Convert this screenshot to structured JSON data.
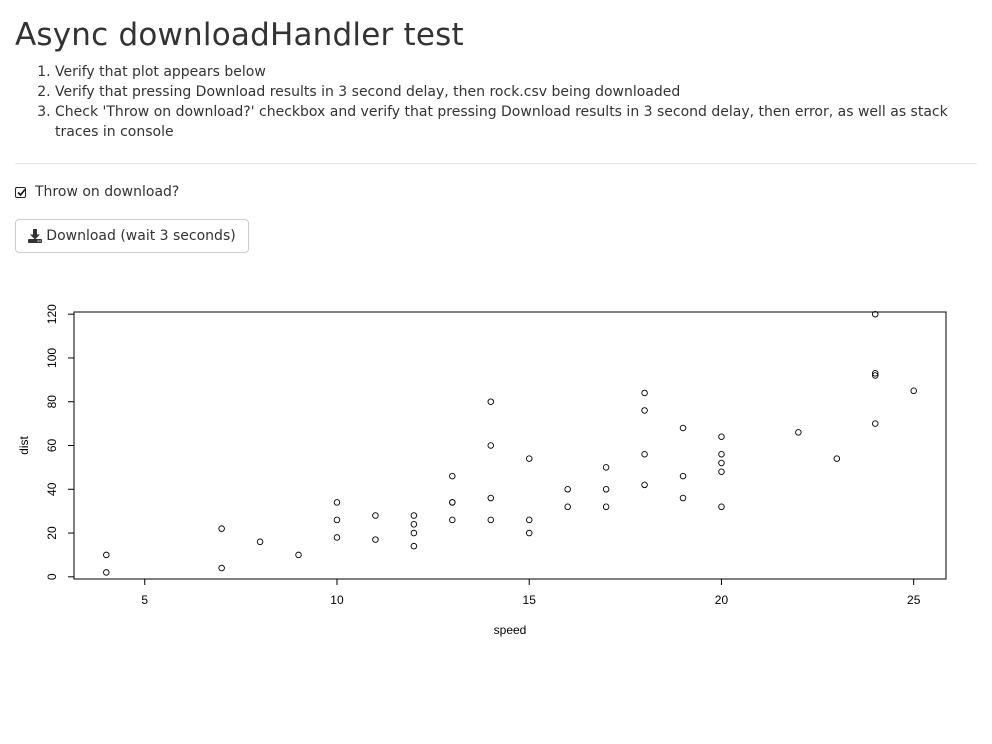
{
  "page": {
    "title": "Async downloadHandler test",
    "steps": [
      "Verify that plot appears below",
      "Verify that pressing Download results in 3 second delay, then rock.csv being downloaded",
      "Check 'Throw on download?' checkbox and verify that pressing Download results in 3 second delay, then error, as well as stack traces in console"
    ]
  },
  "controls": {
    "checkbox_label": "Throw on download?",
    "checkbox_checked": true,
    "download_label": "Download (wait 3 seconds)",
    "download_icon": "download-icon"
  },
  "chart_data": {
    "type": "scatter",
    "title": "",
    "xlabel": "speed",
    "ylabel": "dist",
    "xlim": [
      3.16,
      25.84
    ],
    "ylim": [
      -1.0,
      121.0
    ],
    "xticks": [
      5,
      10,
      15,
      20,
      25
    ],
    "yticks": [
      0,
      20,
      40,
      60,
      80,
      100,
      120
    ],
    "grid": false,
    "points": [
      [
        4,
        2
      ],
      [
        4,
        10
      ],
      [
        7,
        4
      ],
      [
        7,
        22
      ],
      [
        8,
        16
      ],
      [
        9,
        10
      ],
      [
        10,
        18
      ],
      [
        10,
        26
      ],
      [
        10,
        34
      ],
      [
        11,
        17
      ],
      [
        11,
        28
      ],
      [
        12,
        14
      ],
      [
        12,
        20
      ],
      [
        12,
        24
      ],
      [
        12,
        28
      ],
      [
        13,
        26
      ],
      [
        13,
        34
      ],
      [
        13,
        34
      ],
      [
        13,
        46
      ],
      [
        14,
        26
      ],
      [
        14,
        36
      ],
      [
        14,
        60
      ],
      [
        14,
        80
      ],
      [
        15,
        20
      ],
      [
        15,
        26
      ],
      [
        15,
        54
      ],
      [
        16,
        32
      ],
      [
        16,
        40
      ],
      [
        17,
        32
      ],
      [
        17,
        40
      ],
      [
        17,
        50
      ],
      [
        18,
        42
      ],
      [
        18,
        56
      ],
      [
        18,
        76
      ],
      [
        18,
        84
      ],
      [
        19,
        36
      ],
      [
        19,
        46
      ],
      [
        19,
        68
      ],
      [
        20,
        32
      ],
      [
        20,
        48
      ],
      [
        20,
        52
      ],
      [
        20,
        56
      ],
      [
        20,
        64
      ],
      [
        22,
        66
      ],
      [
        23,
        54
      ],
      [
        24,
        70
      ],
      [
        24,
        92
      ],
      [
        24,
        93
      ],
      [
        24,
        120
      ],
      [
        25,
        85
      ]
    ]
  }
}
